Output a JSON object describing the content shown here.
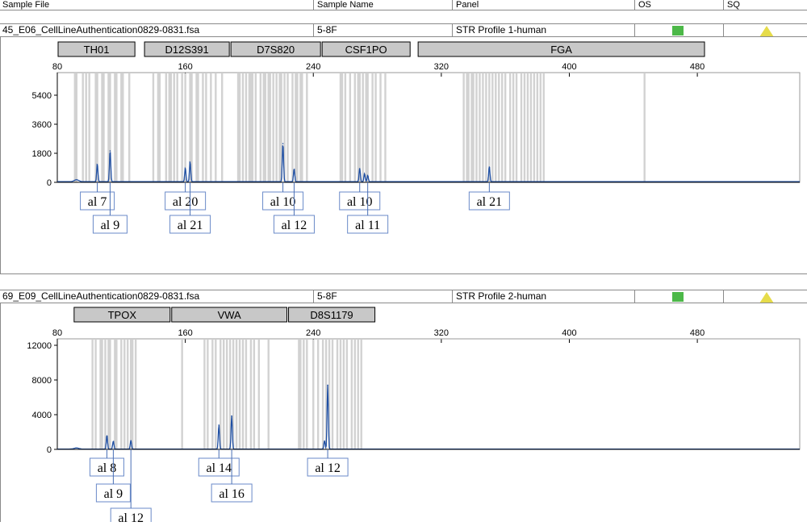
{
  "columns": [
    "Sample File",
    "Sample Name",
    "Panel",
    "OS",
    "SQ"
  ],
  "quality_colors": {
    "os": "#4cb848",
    "sq": "#e6dc4a"
  },
  "chart_data": [
    {
      "type": "line",
      "sample_file": "45_E06_CellLineAuthentication0829-0831.fsa",
      "sample_name": "5-8F",
      "panel": "STR Profile 1-human",
      "os_status": "pass",
      "sq_status": "check",
      "x_ticks": [
        80,
        160,
        240,
        320,
        400,
        480
      ],
      "xlim": [
        80,
        544
      ],
      "y_ticks": [
        0,
        1800,
        3600,
        5400
      ],
      "ylim": [
        0,
        6300
      ],
      "loci": [
        {
          "name": "TH01",
          "start": 80,
          "end": 129
        },
        {
          "name": "D12S391",
          "start": 134,
          "end": 188
        },
        {
          "name": "D7S820",
          "start": 188,
          "end": 245
        },
        {
          "name": "CSF1PO",
          "start": 245,
          "end": 301
        },
        {
          "name": "FGA",
          "start": 305,
          "end": 485
        }
      ],
      "bins": [
        [
          91,
          92,
          96,
          98,
          100,
          104,
          105,
          108,
          109,
          112,
          113,
          116,
          117,
          120,
          121,
          125
        ],
        [
          140,
          143,
          144,
          148,
          150,
          151,
          153,
          155,
          158,
          160,
          163,
          164,
          167,
          168,
          171,
          173,
          176,
          179,
          183
        ],
        [
          193,
          194,
          196,
          198,
          200,
          201,
          202,
          204,
          207,
          209,
          210,
          212,
          213,
          215,
          217,
          219,
          220,
          222,
          224,
          227,
          229,
          230,
          232,
          233,
          236
        ],
        [
          257,
          258,
          260,
          263,
          266,
          268,
          269,
          271,
          273,
          274,
          277,
          279,
          282,
          285
        ],
        [
          334,
          336,
          337,
          339,
          340,
          342,
          344,
          346,
          348,
          350,
          352,
          354,
          356,
          358,
          360,
          363,
          365,
          367,
          370,
          372,
          374,
          376,
          378,
          380,
          382,
          384,
          447
        ]
      ],
      "peaks": [
        {
          "x": 105,
          "height": 1100
        },
        {
          "x": 113,
          "height": 1950
        },
        {
          "x": 160,
          "height": 850
        },
        {
          "x": 163,
          "height": 1250
        },
        {
          "x": 221,
          "height": 2400
        },
        {
          "x": 228,
          "height": 800
        },
        {
          "x": 269,
          "height": 850
        },
        {
          "x": 272,
          "height": 500
        },
        {
          "x": 274,
          "height": 400
        },
        {
          "x": 350,
          "height": 950
        }
      ],
      "alleles": [
        {
          "label": "al 7",
          "x": 105,
          "row": 1
        },
        {
          "label": "al 9",
          "x": 113,
          "row": 2
        },
        {
          "label": "al 20",
          "x": 160,
          "row": 1
        },
        {
          "label": "al 21",
          "x": 163,
          "row": 2
        },
        {
          "label": "al 10",
          "x": 221,
          "row": 1
        },
        {
          "label": "al 12",
          "x": 228,
          "row": 2
        },
        {
          "label": "al 10",
          "x": 269,
          "row": 1
        },
        {
          "label": "al 11",
          "x": 274,
          "row": 2
        },
        {
          "label": "al 21",
          "x": 350,
          "row": 1
        }
      ]
    },
    {
      "type": "line",
      "sample_file": "69_E09_CellLineAuthentication0829-0831.fsa",
      "sample_name": "5-8F",
      "panel": "STR Profile 2-human",
      "os_status": "pass",
      "sq_status": "check",
      "x_ticks": [
        80,
        160,
        240,
        320,
        400,
        480
      ],
      "xlim": [
        80,
        544
      ],
      "y_ticks": [
        0,
        4000,
        8000,
        12000
      ],
      "ylim": [
        0,
        12000
      ],
      "loci": [
        {
          "name": "TPOX",
          "start": 90,
          "end": 151
        },
        {
          "name": "VWA",
          "start": 151,
          "end": 224
        },
        {
          "name": "D8S1179",
          "start": 224,
          "end": 279
        }
      ],
      "bins": [
        [
          102,
          104,
          107,
          108,
          110,
          112,
          113,
          116,
          117,
          120,
          122,
          124,
          126,
          127,
          129
        ],
        [
          158,
          172,
          174,
          177,
          179,
          182,
          184,
          186,
          188,
          190,
          192,
          194,
          196,
          198,
          201,
          203,
          206,
          212
        ],
        [
          231,
          232,
          234,
          236,
          240,
          243,
          246,
          248,
          250,
          252,
          255,
          257,
          259,
          261,
          264,
          266,
          268,
          270
        ]
      ],
      "peaks": [
        {
          "x": 111,
          "height": 1550
        },
        {
          "x": 115,
          "height": 900
        },
        {
          "x": 126,
          "height": 1000
        },
        {
          "x": 181,
          "height": 2800
        },
        {
          "x": 189,
          "height": 3850
        },
        {
          "x": 249,
          "height": 7400
        },
        {
          "x": 247,
          "height": 950
        }
      ],
      "alleles": [
        {
          "label": "al 8",
          "x": 111,
          "row": 1
        },
        {
          "label": "al 9",
          "x": 115,
          "row": 2
        },
        {
          "label": "al 12",
          "x": 126,
          "row": 3
        },
        {
          "label": "al 14",
          "x": 181,
          "row": 1
        },
        {
          "label": "al 16",
          "x": 189,
          "row": 2
        },
        {
          "label": "al 12",
          "x": 249,
          "row": 1
        }
      ]
    }
  ]
}
